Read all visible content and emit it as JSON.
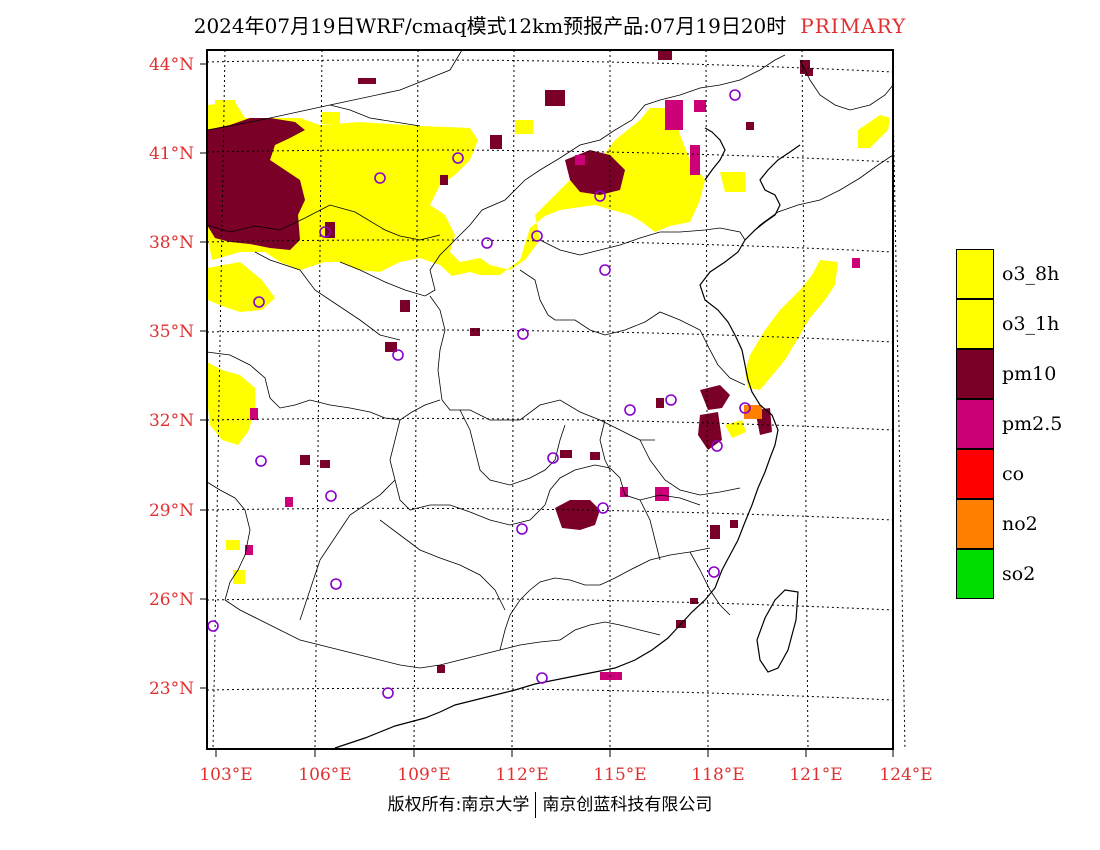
{
  "title": {
    "main": "2024年07月19日WRF/cmaq模式12km预报产品:07月19日20时",
    "tag": "PRIMARY"
  },
  "axes": {
    "lat_labels": [
      "44°N",
      "41°N",
      "38°N",
      "35°N",
      "32°N",
      "29°N",
      "26°N",
      "23°N"
    ],
    "lon_labels": [
      "103°E",
      "106°E",
      "109°E",
      "112°E",
      "115°E",
      "118°E",
      "121°E",
      "124°E"
    ]
  },
  "legend": [
    {
      "label": "o3_8h",
      "color": "#ffff00"
    },
    {
      "label": "o3_1h",
      "color": "#ffff00"
    },
    {
      "label": "pm10",
      "color": "#7a0028"
    },
    {
      "label": "pm2.5",
      "color": "#cc0077"
    },
    {
      "label": "co",
      "color": "#ff0000"
    },
    {
      "label": "no2",
      "color": "#ff8000"
    },
    {
      "label": "so2",
      "color": "#00dd00"
    }
  ],
  "footer": {
    "left": "版权所有:南京大学",
    "right": "南京创蓝科技有限公司"
  },
  "colors": {
    "axis_label": "#e03030",
    "o3": "#ffff00",
    "pm10": "#7a0028",
    "pm25": "#cc0077",
    "no2": "#ff8000",
    "station": "#8800cc"
  }
}
